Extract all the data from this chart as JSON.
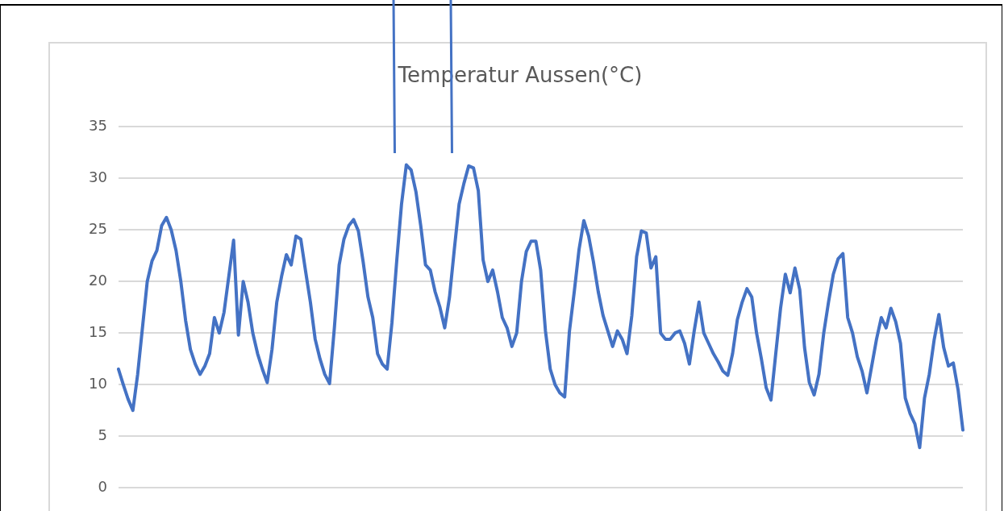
{
  "chart_data": {
    "type": "line",
    "title": "Temperatur Aussen(°C)",
    "color": "#4472c4",
    "marker": "none",
    "line_style": "solid",
    "grid": "y",
    "legend": false,
    "tick_labels": "y",
    "ylim": [
      0,
      35
    ],
    "yticks": [
      0,
      5,
      10,
      15,
      20,
      25,
      30,
      35
    ],
    "categories": [
      null,
      null,
      null,
      null,
      null,
      null,
      null,
      null,
      null,
      null,
      null,
      null,
      null,
      null,
      null,
      null,
      null,
      null,
      null,
      null,
      null,
      null,
      null,
      null,
      null,
      null,
      null,
      null,
      null,
      null,
      null,
      null,
      null,
      null,
      null,
      null,
      null,
      null,
      null,
      null,
      null,
      null,
      null,
      null,
      null,
      null,
      null,
      null,
      null,
      null,
      null,
      null,
      null,
      null,
      null,
      null,
      null,
      null,
      null,
      null,
      null,
      null,
      null,
      null,
      null,
      null,
      null,
      null,
      null,
      null,
      null,
      null,
      null,
      null,
      null,
      null,
      null,
      null,
      null,
      null,
      null,
      null,
      null,
      null,
      null,
      null,
      null,
      null,
      null,
      null,
      null,
      null,
      null,
      null,
      null,
      null,
      null,
      null,
      null,
      null,
      null,
      null,
      null,
      null,
      null,
      null,
      null,
      null,
      null,
      null,
      null,
      null,
      null,
      null,
      null,
      null,
      null,
      null,
      null,
      null,
      null,
      null,
      null,
      null,
      null,
      null,
      null,
      null,
      null,
      null,
      null,
      null,
      null,
      null,
      null,
      null,
      null,
      null,
      null,
      null,
      null,
      null,
      null,
      null,
      null,
      null,
      null,
      null,
      null,
      null,
      null,
      null,
      null,
      null,
      null,
      null,
      null,
      null,
      null,
      null,
      null,
      null,
      null,
      null,
      null,
      null,
      null,
      null,
      null,
      null,
      null,
      null,
      null,
      null,
      null,
      null,
      null
    ],
    "values": [
      11.5,
      10,
      8.6,
      7.5,
      11,
      15.5,
      20,
      22,
      23,
      25.4,
      26.2,
      25,
      23,
      20,
      16.2,
      13.4,
      12,
      11,
      11.8,
      13,
      16.5,
      15,
      17,
      20.5,
      24,
      14.8,
      20,
      18,
      15,
      13,
      11.5,
      10.2,
      13.4,
      18,
      20.5,
      22.6,
      21.6,
      24.4,
      24.1,
      21,
      18,
      14.4,
      12.5,
      11,
      10.1,
      15.5,
      21.6,
      24.1,
      25.4,
      26,
      24.9,
      21.9,
      18.5,
      16.5,
      13,
      12,
      11.5,
      16,
      22,
      27.5,
      31.3,
      30.8,
      28.7,
      25.4,
      21.6,
      21.1,
      19,
      17.5,
      15.5,
      18.5,
      23.1,
      27.5,
      29.5,
      31.2,
      31,
      28.8,
      22.1,
      20,
      21.1,
      19,
      16.5,
      15.5,
      13.7,
      15,
      20,
      22.9,
      23.9,
      23.9,
      21.1,
      15.2,
      11.5,
      10,
      9.2,
      8.8,
      15.2,
      19,
      23.1,
      25.9,
      24.4,
      21.9,
      19,
      16.7,
      15.2,
      13.7,
      15.2,
      14.4,
      13,
      16.7,
      22.4,
      24.9,
      24.7,
      21.3,
      22.4,
      15,
      14.4,
      14.4,
      15,
      15.2,
      14,
      12,
      15.2,
      18,
      15,
      14,
      13,
      12.2,
      11.3,
      10.9,
      13,
      16.3,
      18,
      19.3,
      18.5,
      15,
      12.5,
      9.7,
      8.5,
      13,
      17.4,
      20.7,
      18.9,
      21.3,
      19.2,
      13.6,
      10.2,
      9,
      11,
      15,
      18,
      20.7,
      22.2,
      22.7,
      16.5,
      15,
      12.7,
      11.3,
      9.2,
      11.8,
      14.4,
      16.5,
      15.5,
      17.4,
      16.1,
      14,
      8.7,
      7.2,
      6.2,
      3.9,
      8.7,
      11,
      14.3,
      16.8,
      13.6,
      11.8,
      12.1,
      9.5,
      5.6
    ]
  }
}
